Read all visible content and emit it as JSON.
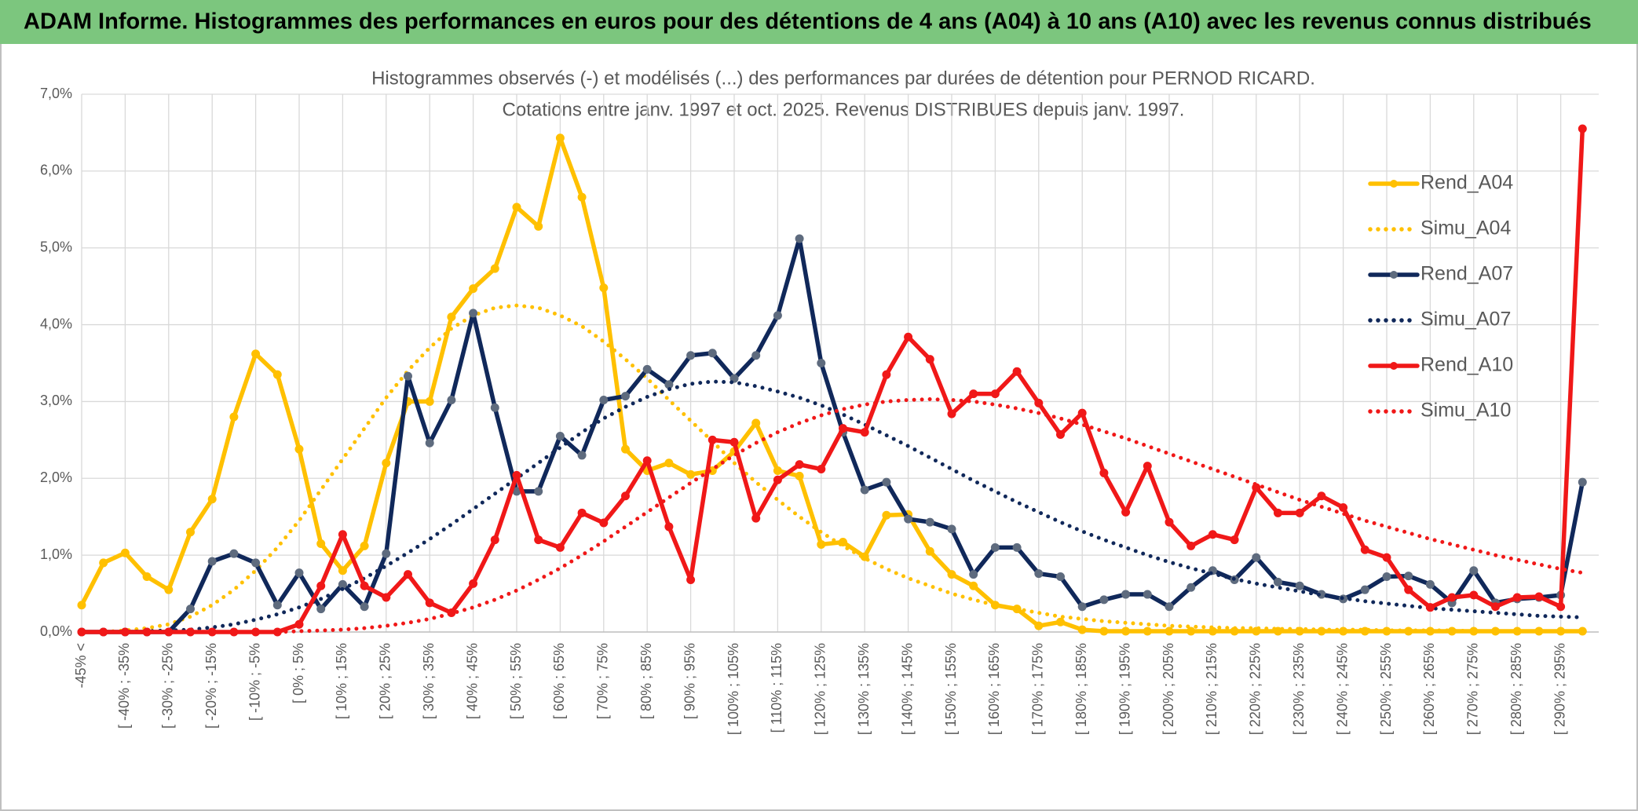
{
  "header": {
    "title": "ADAM Informe. Histogrammes des performances en euros pour des détentions de 4 ans (A04) à 10 ans (A10) avec les revenus connus distribués"
  },
  "chart_data": {
    "type": "line",
    "title": "Histogrammes observés (-) et modélisés (...) des performances par durées de détention pour PERNOD RICARD.",
    "subtitle": "Cotations entre janv. 1997 et oct. 2025. Revenus DISTRIBUES depuis janv. 1997.",
    "categories": [
      "-45% <",
      null,
      "[ -40% ; -35%",
      null,
      "[ -30% ; -25%",
      null,
      "[ -20% ; -15%",
      null,
      "[ -10% ; -5%",
      null,
      "[ 0% ; 5%",
      null,
      "[ 10% ; 15%",
      null,
      "[ 20% ; 25%",
      null,
      "[ 30% ; 35%",
      null,
      "[ 40% ; 45%",
      null,
      "[ 50% ; 55%",
      null,
      "[ 60% ; 65%",
      null,
      "[ 70% ; 75%",
      null,
      "[ 80% ; 85%",
      null,
      "[ 90% ; 95%",
      null,
      "[ 100% ; 105%",
      null,
      "[ 110% ; 115%",
      null,
      "[ 120% ; 125%",
      null,
      "[ 130% ; 135%",
      null,
      "[ 140% ; 145%",
      null,
      "[ 150% ; 155%",
      null,
      "[ 160% ; 165%",
      null,
      "[ 170% ; 175%",
      null,
      "[ 180% ; 185%",
      null,
      "[ 190% ; 195%",
      null,
      "[ 200% ; 205%",
      null,
      "[ 210% ; 215%",
      null,
      "[ 220% ; 225%",
      null,
      "[ 230% ; 235%",
      null,
      "[ 240% ; 245%",
      null,
      "[ 250% ; 255%",
      null,
      "[ 260% ; 265%",
      null,
      "[ 270% ; 275%",
      null,
      "[ 280% ; 285%",
      null,
      "[ 290% ; 295%",
      null
    ],
    "series": [
      {
        "name": "Rend_A04",
        "color": "#FFC000",
        "line_style": "solid",
        "marker": true,
        "values": [
          0.35,
          0.9,
          1.03,
          0.72,
          0.55,
          1.3,
          1.73,
          2.8,
          3.62,
          3.35,
          2.38,
          1.15,
          0.8,
          1.12,
          2.2,
          3.0,
          3.0,
          4.1,
          4.47,
          4.73,
          5.53,
          5.28,
          6.43,
          5.66,
          4.48,
          2.38,
          2.1,
          2.2,
          2.05,
          2.1,
          2.35,
          2.72,
          2.1,
          2.03,
          1.14,
          1.17,
          0.98,
          1.52,
          1.53,
          1.05,
          0.75,
          0.6,
          0.35,
          0.3,
          0.08,
          0.13,
          0.03,
          0.01,
          0.01,
          0.01,
          0.01,
          0.01,
          0.01,
          0.01,
          0.01,
          0.01,
          0.01,
          0.01,
          0.01,
          0.01,
          0.01,
          0.01,
          0.01,
          0.01,
          0.01,
          0.01,
          0.01,
          0.01,
          0.01,
          0.01
        ]
      },
      {
        "name": "Simu_A04",
        "color": "#FFC000",
        "line_style": "dotted",
        "marker": false,
        "values": [
          0,
          0,
          0.02,
          0.05,
          0.1,
          0.2,
          0.35,
          0.55,
          0.8,
          1.1,
          1.45,
          1.85,
          2.25,
          2.65,
          3.05,
          3.4,
          3.7,
          3.95,
          4.12,
          4.22,
          4.25,
          4.22,
          4.12,
          3.98,
          3.78,
          3.55,
          3.3,
          3.02,
          2.75,
          2.48,
          2.2,
          1.95,
          1.72,
          1.5,
          1.3,
          1.12,
          0.96,
          0.82,
          0.7,
          0.6,
          0.5,
          0.42,
          0.35,
          0.3,
          0.25,
          0.2,
          0.17,
          0.14,
          0.12,
          0.1,
          0.08,
          0.07,
          0.06,
          0.05,
          0.05,
          0.04,
          0.04,
          0.03,
          0.03,
          0.03,
          0.02,
          0.02,
          0.02,
          0.02,
          0.01,
          0.01,
          0.01,
          0.01,
          0.01,
          0.01
        ]
      },
      {
        "name": "Rend_A07",
        "color": "#10285A",
        "line_style": "solid",
        "marker": true,
        "marker_color": "#5E6B7E",
        "values": [
          0,
          0,
          0,
          0,
          0,
          0.3,
          0.92,
          1.02,
          0.9,
          0.35,
          0.77,
          0.3,
          0.62,
          0.33,
          1.02,
          3.33,
          2.46,
          3.02,
          4.15,
          2.92,
          1.83,
          1.83,
          2.55,
          2.3,
          3.02,
          3.07,
          3.42,
          3.22,
          3.6,
          3.63,
          3.3,
          3.6,
          4.12,
          5.12,
          3.5,
          2.6,
          1.85,
          1.95,
          1.47,
          1.43,
          1.34,
          0.75,
          1.1,
          1.1,
          0.76,
          0.72,
          0.33,
          0.42,
          0.49,
          0.49,
          0.33,
          0.58,
          0.8,
          0.68,
          0.97,
          0.65,
          0.6,
          0.49,
          0.43,
          0.55,
          0.72,
          0.73,
          0.62,
          0.38,
          0.8,
          0.38,
          0.43,
          0.45,
          0.48,
          1.95
        ]
      },
      {
        "name": "Simu_A07",
        "color": "#10285A",
        "line_style": "dotted",
        "marker": false,
        "values": [
          0,
          0,
          0,
          0.01,
          0.02,
          0.03,
          0.06,
          0.1,
          0.16,
          0.23,
          0.32,
          0.43,
          0.56,
          0.7,
          0.86,
          1.03,
          1.21,
          1.4,
          1.6,
          1.8,
          2.0,
          2.2,
          2.4,
          2.6,
          2.78,
          2.93,
          3.06,
          3.16,
          3.23,
          3.26,
          3.25,
          3.2,
          3.13,
          3.05,
          2.95,
          2.83,
          2.7,
          2.56,
          2.42,
          2.27,
          2.12,
          1.97,
          1.83,
          1.69,
          1.56,
          1.43,
          1.31,
          1.2,
          1.1,
          1.0,
          0.91,
          0.83,
          0.76,
          0.69,
          0.63,
          0.58,
          0.53,
          0.48,
          0.44,
          0.4,
          0.37,
          0.34,
          0.31,
          0.29,
          0.27,
          0.25,
          0.23,
          0.21,
          0.2,
          0.19
        ]
      },
      {
        "name": "Rend_A10",
        "color": "#F01818",
        "line_style": "solid",
        "marker": true,
        "values": [
          0,
          0,
          0,
          0,
          0,
          0,
          0,
          0,
          0,
          0,
          0.1,
          0.6,
          1.27,
          0.6,
          0.45,
          0.75,
          0.38,
          0.25,
          0.63,
          1.2,
          2.04,
          1.2,
          1.1,
          1.55,
          1.42,
          1.77,
          2.23,
          1.37,
          0.68,
          2.5,
          2.47,
          1.48,
          1.98,
          2.18,
          2.12,
          2.65,
          2.6,
          3.35,
          3.84,
          3.55,
          2.84,
          3.1,
          3.1,
          3.39,
          2.98,
          2.57,
          2.85,
          2.07,
          1.56,
          2.16,
          1.43,
          1.12,
          1.27,
          1.2,
          1.88,
          1.55,
          1.55,
          1.77,
          1.62,
          1.07,
          0.97,
          0.55,
          0.32,
          0.45,
          0.48,
          0.33,
          0.45,
          0.46,
          0.33,
          6.55
        ]
      },
      {
        "name": "Simu_A10",
        "color": "#F01818",
        "line_style": "dotted",
        "marker": false,
        "values": [
          0,
          0,
          0,
          0,
          0,
          0,
          0,
          0,
          0,
          0,
          0.01,
          0.02,
          0.03,
          0.05,
          0.08,
          0.12,
          0.17,
          0.24,
          0.32,
          0.42,
          0.54,
          0.68,
          0.83,
          1.0,
          1.18,
          1.37,
          1.56,
          1.75,
          1.94,
          2.12,
          2.3,
          2.46,
          2.6,
          2.72,
          2.82,
          2.9,
          2.96,
          3.0,
          3.02,
          3.03,
          3.02,
          3.0,
          2.96,
          2.91,
          2.85,
          2.78,
          2.7,
          2.61,
          2.52,
          2.42,
          2.32,
          2.22,
          2.12,
          2.02,
          1.92,
          1.82,
          1.72,
          1.63,
          1.54,
          1.45,
          1.37,
          1.29,
          1.21,
          1.14,
          1.07,
          1.0,
          0.94,
          0.88,
          0.82,
          0.77
        ]
      }
    ],
    "ylim": [
      0,
      7
    ],
    "yticks": [
      {
        "value": 0,
        "label": "0,0%"
      },
      {
        "value": 1,
        "label": "1,0%"
      },
      {
        "value": 2,
        "label": "2,0%"
      },
      {
        "value": 3,
        "label": "3,0%"
      },
      {
        "value": 4,
        "label": "4,0%"
      },
      {
        "value": 5,
        "label": "5,0%"
      },
      {
        "value": 6,
        "label": "6,0%"
      },
      {
        "value": 7,
        "label": "7,0%"
      }
    ],
    "grid": true,
    "legend": "right"
  }
}
